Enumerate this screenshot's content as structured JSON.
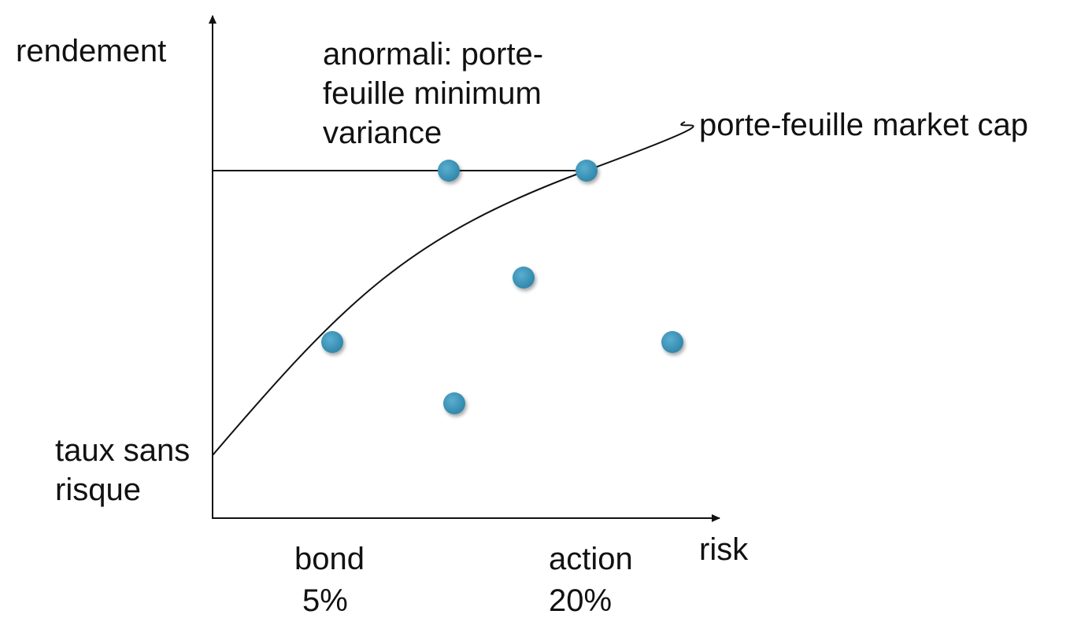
{
  "labels": {
    "y_axis": "rendement",
    "x_axis": "risk",
    "anomaly": [
      "anormali: porte-",
      "feuille minimum",
      "variance"
    ],
    "curve": "porte-feuille market cap",
    "risk_free": [
      "taux sans",
      "risque"
    ],
    "bond": [
      "bond",
      "5%"
    ],
    "stock": [
      "action",
      "20%"
    ]
  },
  "colors": {
    "axis": "#111111",
    "dot": "#3a91b4",
    "dot_highlight": "#5aaed0"
  }
}
